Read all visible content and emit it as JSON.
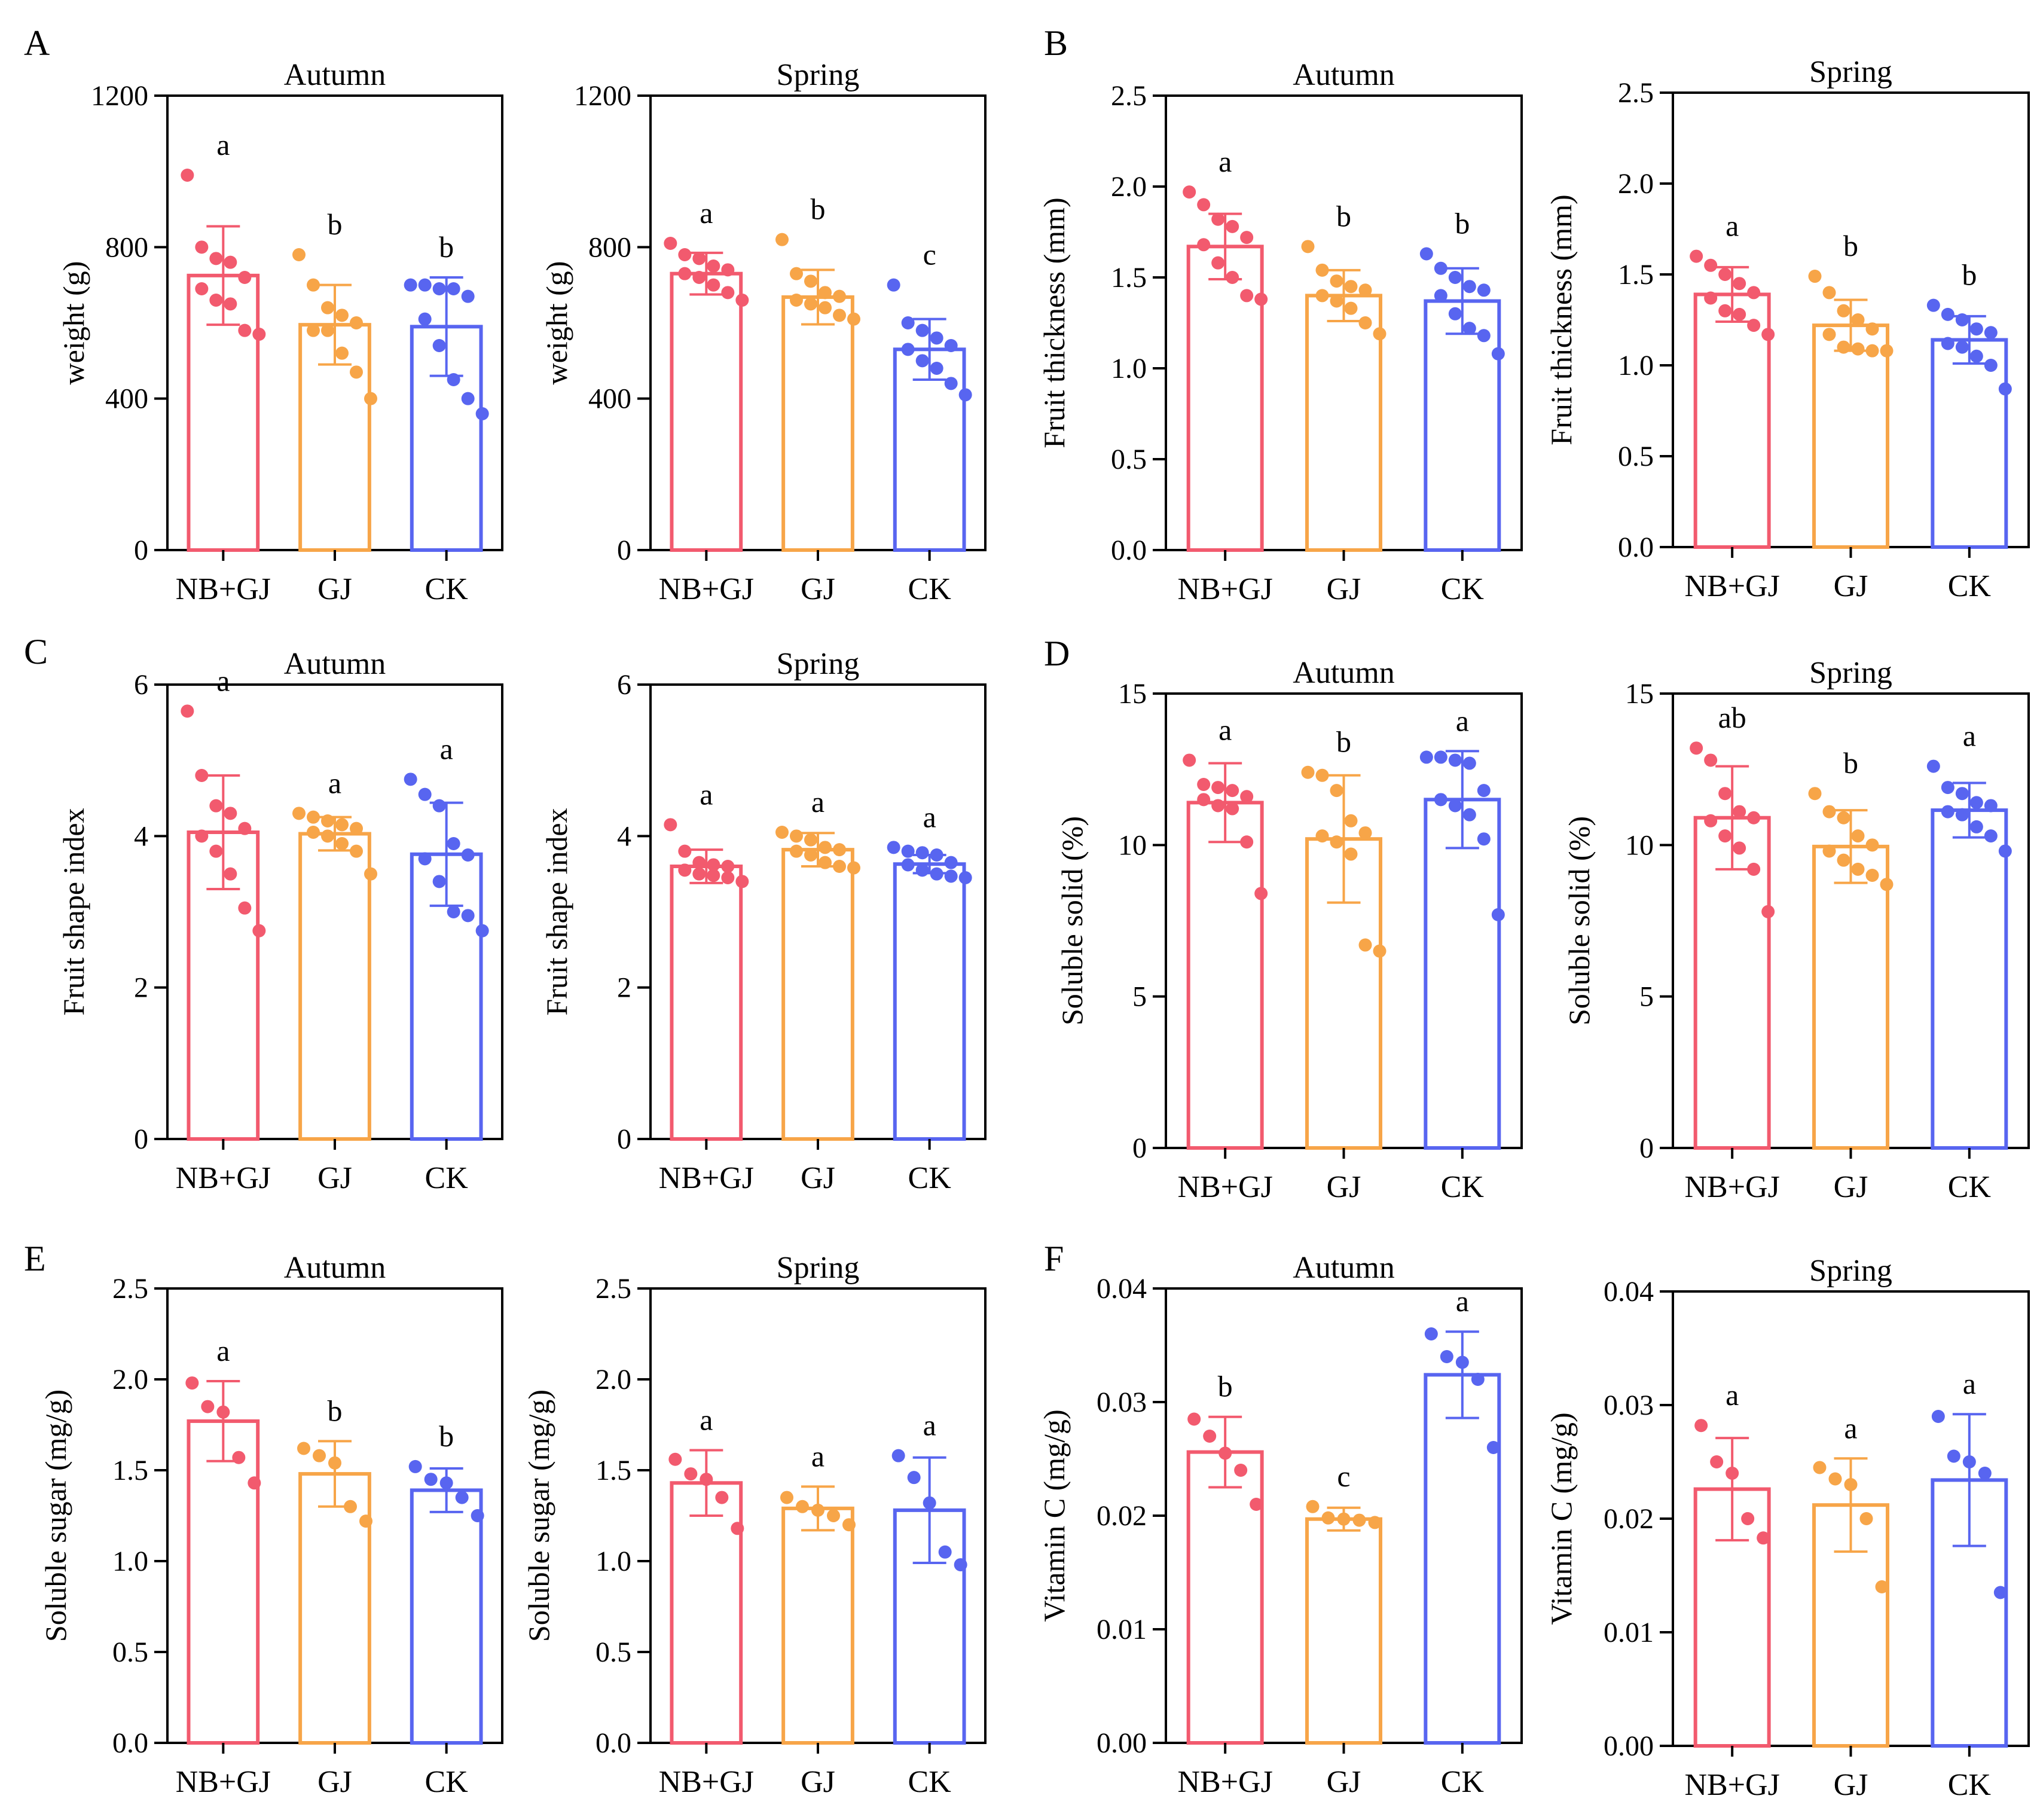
{
  "colors": {
    "NB+GJ": "#f25a6e",
    "GJ": "#f7a548",
    "CK": "#5865f0"
  },
  "categories": [
    "NB+GJ",
    "GJ",
    "CK"
  ],
  "chart_data": [
    {
      "type": "bar",
      "panel": "A",
      "title": "Autumn",
      "ylabel": "weight (g)",
      "ylim": [
        0,
        1200
      ],
      "yticks": [
        0,
        400,
        800,
        1200
      ],
      "ytick_labels": [
        "0",
        "400",
        "800",
        "1200"
      ],
      "categories": [
        "NB+GJ",
        "GJ",
        "CK"
      ],
      "values": [
        725,
        595,
        590
      ],
      "errors": [
        130,
        105,
        130
      ],
      "letters": [
        "a",
        "b",
        "b"
      ],
      "points": [
        [
          990,
          800,
          770,
          760,
          720,
          690,
          660,
          650,
          580,
          570
        ],
        [
          780,
          700,
          640,
          620,
          600,
          580,
          580,
          520,
          470,
          400
        ],
        [
          700,
          700,
          690,
          690,
          670,
          610,
          540,
          450,
          400,
          360
        ]
      ]
    },
    {
      "type": "bar",
      "panel": "",
      "title": "Spring",
      "ylabel": "weight (g)",
      "ylim": [
        0,
        1200
      ],
      "yticks": [
        0,
        400,
        800,
        1200
      ],
      "ytick_labels": [
        "0",
        "400",
        "800",
        "1200"
      ],
      "categories": [
        "NB+GJ",
        "GJ",
        "CK"
      ],
      "values": [
        730,
        668,
        530
      ],
      "errors": [
        55,
        72,
        80
      ],
      "letters": [
        "a",
        "b",
        "c"
      ],
      "points": [
        [
          810,
          780,
          770,
          750,
          740,
          730,
          720,
          700,
          680,
          660
        ],
        [
          820,
          730,
          710,
          680,
          670,
          660,
          650,
          640,
          620,
          610
        ],
        [
          700,
          600,
          580,
          560,
          540,
          530,
          500,
          480,
          440,
          410
        ]
      ]
    },
    {
      "type": "bar",
      "panel": "B",
      "title": "Autumn",
      "ylabel": "Fruit thickness (mm)",
      "ylim": [
        0,
        2.5
      ],
      "yticks": [
        0,
        0.5,
        1.0,
        1.5,
        2.0,
        2.5
      ],
      "ytick_labels": [
        "0.0",
        "0.5",
        "1.0",
        "1.5",
        "2.0",
        "2.5"
      ],
      "categories": [
        "NB+GJ",
        "GJ",
        "CK"
      ],
      "values": [
        1.67,
        1.4,
        1.37
      ],
      "errors": [
        0.18,
        0.14,
        0.18
      ],
      "letters": [
        "a",
        "b",
        "b"
      ],
      "points": [
        [
          1.97,
          1.9,
          1.82,
          1.78,
          1.72,
          1.68,
          1.58,
          1.5,
          1.4,
          1.38
        ],
        [
          1.67,
          1.54,
          1.48,
          1.45,
          1.43,
          1.4,
          1.37,
          1.33,
          1.25,
          1.19
        ],
        [
          1.63,
          1.55,
          1.5,
          1.45,
          1.43,
          1.4,
          1.3,
          1.22,
          1.18,
          1.08
        ]
      ]
    },
    {
      "type": "bar",
      "panel": "",
      "title": "Spring",
      "ylabel": "Fruit thickness (mm)",
      "ylim": [
        0,
        2.5
      ],
      "yticks": [
        0,
        0.5,
        1.0,
        1.5,
        2.0,
        2.5
      ],
      "ytick_labels": [
        "0.0",
        "0.5",
        "1.0",
        "1.5",
        "2.0",
        "2.5"
      ],
      "categories": [
        "NB+GJ",
        "GJ",
        "CK"
      ],
      "values": [
        1.39,
        1.22,
        1.14
      ],
      "errors": [
        0.15,
        0.14,
        0.13
      ],
      "letters": [
        "a",
        "b",
        "b"
      ],
      "points": [
        [
          1.6,
          1.55,
          1.5,
          1.45,
          1.4,
          1.37,
          1.3,
          1.28,
          1.22,
          1.17
        ],
        [
          1.49,
          1.4,
          1.3,
          1.25,
          1.2,
          1.17,
          1.1,
          1.09,
          1.08,
          1.08
        ],
        [
          1.33,
          1.28,
          1.25,
          1.2,
          1.18,
          1.12,
          1.1,
          1.05,
          1.0,
          0.87
        ]
      ]
    },
    {
      "type": "bar",
      "panel": "C",
      "title": "Autumn",
      "ylabel": "Fruit shape index",
      "ylim": [
        0,
        6
      ],
      "yticks": [
        0,
        2,
        4,
        6
      ],
      "ytick_labels": [
        "0",
        "2",
        "4",
        "6"
      ],
      "categories": [
        "NB+GJ",
        "GJ",
        "CK"
      ],
      "values": [
        4.05,
        4.03,
        3.76
      ],
      "errors": [
        0.75,
        0.22,
        0.68
      ],
      "letters": [
        "a",
        "a",
        "a"
      ],
      "points": [
        [
          5.65,
          4.8,
          4.4,
          4.3,
          4.1,
          4.0,
          3.8,
          3.5,
          3.05,
          2.75
        ],
        [
          4.3,
          4.25,
          4.2,
          4.15,
          4.1,
          4.05,
          4.0,
          3.9,
          3.8,
          3.5
        ],
        [
          4.75,
          4.55,
          4.4,
          3.9,
          3.75,
          3.7,
          3.4,
          3.0,
          2.95,
          2.75
        ]
      ]
    },
    {
      "type": "bar",
      "panel": "",
      "title": "Spring",
      "ylabel": "Fruit shape index",
      "ylim": [
        0,
        6
      ],
      "yticks": [
        0,
        2,
        4,
        6
      ],
      "ytick_labels": [
        "0",
        "2",
        "4",
        "6"
      ],
      "categories": [
        "NB+GJ",
        "GJ",
        "CK"
      ],
      "values": [
        3.6,
        3.82,
        3.63
      ],
      "errors": [
        0.22,
        0.22,
        0.12
      ],
      "letters": [
        "a",
        "a",
        "a"
      ],
      "points": [
        [
          4.15,
          3.8,
          3.65,
          3.62,
          3.6,
          3.55,
          3.5,
          3.48,
          3.45,
          3.4
        ],
        [
          4.05,
          4.0,
          3.95,
          3.85,
          3.82,
          3.8,
          3.75,
          3.65,
          3.6,
          3.58
        ],
        [
          3.85,
          3.8,
          3.78,
          3.75,
          3.65,
          3.62,
          3.55,
          3.5,
          3.47,
          3.45
        ]
      ]
    },
    {
      "type": "bar",
      "panel": "D",
      "title": "Autumn",
      "ylabel": "Soluble solid (%)",
      "ylim": [
        0,
        15
      ],
      "yticks": [
        0,
        5,
        10,
        15
      ],
      "ytick_labels": [
        "0",
        "5",
        "10",
        "15"
      ],
      "categories": [
        "NB+GJ",
        "GJ",
        "CK"
      ],
      "values": [
        11.4,
        10.2,
        11.5
      ],
      "errors": [
        1.3,
        2.1,
        1.6
      ],
      "letters": [
        "a",
        "b",
        "a"
      ],
      "points": [
        [
          12.8,
          12.0,
          11.9,
          11.8,
          11.6,
          11.5,
          11.3,
          11.2,
          10.1,
          8.4
        ],
        [
          12.4,
          12.3,
          11.8,
          10.8,
          10.4,
          10.3,
          10.1,
          9.7,
          6.7,
          6.5
        ],
        [
          12.9,
          12.9,
          12.8,
          12.7,
          11.8,
          11.5,
          11.3,
          11.0,
          10.2,
          7.7
        ]
      ]
    },
    {
      "type": "bar",
      "panel": "",
      "title": "Spring",
      "ylabel": "Soluble solid (%)",
      "ylim": [
        0,
        15
      ],
      "yticks": [
        0,
        5,
        10,
        15
      ],
      "ytick_labels": [
        "0",
        "5",
        "10",
        "15"
      ],
      "categories": [
        "NB+GJ",
        "GJ",
        "CK"
      ],
      "values": [
        10.9,
        9.95,
        11.15
      ],
      "errors": [
        1.7,
        1.2,
        0.9
      ],
      "letters": [
        "ab",
        "b",
        "a"
      ],
      "points": [
        [
          13.2,
          12.8,
          11.7,
          11.1,
          10.9,
          10.8,
          10.3,
          9.9,
          9.2,
          7.8
        ],
        [
          11.7,
          11.1,
          10.9,
          10.3,
          10.0,
          9.8,
          9.5,
          9.2,
          9.0,
          8.7
        ],
        [
          12.6,
          11.9,
          11.7,
          11.4,
          11.3,
          11.1,
          11.0,
          10.6,
          10.3,
          9.8
        ]
      ]
    },
    {
      "type": "bar",
      "panel": "E",
      "title": "Autumn",
      "ylabel": "Soluble sugar (mg/g)",
      "ylim": [
        0,
        2.5
      ],
      "yticks": [
        0,
        0.5,
        1.0,
        1.5,
        2.0,
        2.5
      ],
      "ytick_labels": [
        "0.0",
        "0.5",
        "1.0",
        "1.5",
        "2.0",
        "2.5"
      ],
      "categories": [
        "NB+GJ",
        "GJ",
        "CK"
      ],
      "values": [
        1.77,
        1.48,
        1.39
      ],
      "errors": [
        0.22,
        0.18,
        0.12
      ],
      "letters": [
        "a",
        "b",
        "b"
      ],
      "points": [
        [
          1.98,
          1.85,
          1.82,
          1.57,
          1.43
        ],
        [
          1.62,
          1.58,
          1.54,
          1.3,
          1.22
        ],
        [
          1.52,
          1.45,
          1.43,
          1.35,
          1.25
        ]
      ]
    },
    {
      "type": "bar",
      "panel": "",
      "title": "Spring",
      "ylabel": "Soluble sugar (mg/g)",
      "ylim": [
        0,
        2.5
      ],
      "yticks": [
        0,
        0.5,
        1.0,
        1.5,
        2.0,
        2.5
      ],
      "ytick_labels": [
        "0.0",
        "0.5",
        "1.0",
        "1.5",
        "2.0",
        "2.5"
      ],
      "categories": [
        "NB+GJ",
        "GJ",
        "CK"
      ],
      "values": [
        1.43,
        1.29,
        1.28
      ],
      "errors": [
        0.18,
        0.12,
        0.29
      ],
      "letters": [
        "a",
        "a",
        "a"
      ],
      "points": [
        [
          1.56,
          1.48,
          1.45,
          1.35,
          1.18
        ],
        [
          1.35,
          1.3,
          1.28,
          1.25,
          1.2
        ],
        [
          1.58,
          1.46,
          1.32,
          1.05,
          0.98
        ]
      ]
    },
    {
      "type": "bar",
      "panel": "F",
      "title": "Autumn",
      "ylabel": "Vitamin C (mg/g)",
      "ylim": [
        0,
        0.04
      ],
      "yticks": [
        0,
        0.01,
        0.02,
        0.03,
        0.04
      ],
      "ytick_labels": [
        "0.00",
        "0.01",
        "0.02",
        "0.03",
        "0.04"
      ],
      "categories": [
        "NB+GJ",
        "GJ",
        "CK"
      ],
      "values": [
        0.0256,
        0.0197,
        0.0324
      ],
      "errors": [
        0.0031,
        0.001,
        0.0038
      ],
      "letters": [
        "b",
        "c",
        "a"
      ],
      "points": [
        [
          0.0285,
          0.027,
          0.0255,
          0.024,
          0.021
        ],
        [
          0.0208,
          0.0198,
          0.0197,
          0.0196,
          0.0194
        ],
        [
          0.036,
          0.034,
          0.0335,
          0.032,
          0.026
        ]
      ]
    },
    {
      "type": "bar",
      "panel": "",
      "title": "Spring",
      "ylabel": "Vitamin C (mg/g)",
      "ylim": [
        0,
        0.04
      ],
      "yticks": [
        0,
        0.01,
        0.02,
        0.03,
        0.04
      ],
      "ytick_labels": [
        "0.00",
        "0.01",
        "0.02",
        "0.03",
        "0.04"
      ],
      "categories": [
        "NB+GJ",
        "GJ",
        "CK"
      ],
      "values": [
        0.0226,
        0.0212,
        0.0234
      ],
      "errors": [
        0.0045,
        0.0041,
        0.0058
      ],
      "letters": [
        "a",
        "a",
        "a"
      ],
      "points": [
        [
          0.0282,
          0.025,
          0.024,
          0.02,
          0.0183
        ],
        [
          0.0245,
          0.0235,
          0.023,
          0.02,
          0.014
        ],
        [
          0.029,
          0.0255,
          0.025,
          0.024,
          0.0135
        ]
      ]
    }
  ]
}
